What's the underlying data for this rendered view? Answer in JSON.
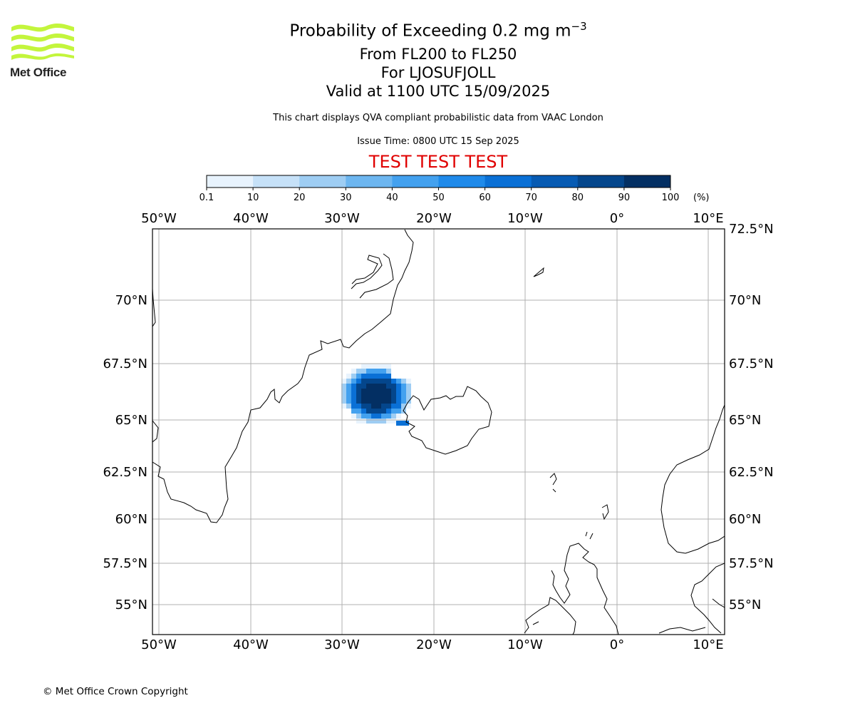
{
  "logo": {
    "text": "Met Office",
    "colors": {
      "waves": "#c3f53c",
      "text": "#222222"
    }
  },
  "title": {
    "line1_main": "Probability of Exceeding 0.2 mg m",
    "line1_sup": "−3",
    "line2": "From FL200 to FL250",
    "line3": "For LJOSUFJOLL",
    "line4": "Valid at 1100 UTC 15/09/2025"
  },
  "subtitle": "This chart displays QVA compliant probabilistic data from VAAC London",
  "issue_time": "Issue Time: 0800 UTC 15 Sep 2025",
  "test_banner": "TEST TEST TEST",
  "colorbar": {
    "labels": [
      "0.1",
      "10",
      "20",
      "30",
      "40",
      "50",
      "60",
      "70",
      "80",
      "90",
      "100"
    ],
    "unit": "(%)",
    "colors": [
      "#e8f3fd",
      "#c6e1f8",
      "#9ecdf3",
      "#6db6f0",
      "#43a1ef",
      "#1f8aea",
      "#0a70d6",
      "#075bb3",
      "#04468c",
      "#032f63"
    ]
  },
  "map": {
    "lon_ticks": [
      "50°W",
      "40°W",
      "30°W",
      "20°W",
      "10°W",
      "0°",
      "10°E"
    ],
    "lat_ticks": [
      "72.5°N",
      "70°N",
      "67.5°N",
      "65°N",
      "62.5°N",
      "60°N",
      "57.5°N",
      "55°N"
    ],
    "extent": {
      "lon_min": -50.7,
      "lon_max": 12,
      "lat_min": 53.5,
      "lat_max": 72.5
    },
    "plume_colors": [
      "#e8f3fd",
      "#9ecdf3",
      "#43a1ef",
      "#0a70d6",
      "#04468c",
      "#032f63"
    ]
  },
  "copyright": "© Met Office Crown Copyright"
}
